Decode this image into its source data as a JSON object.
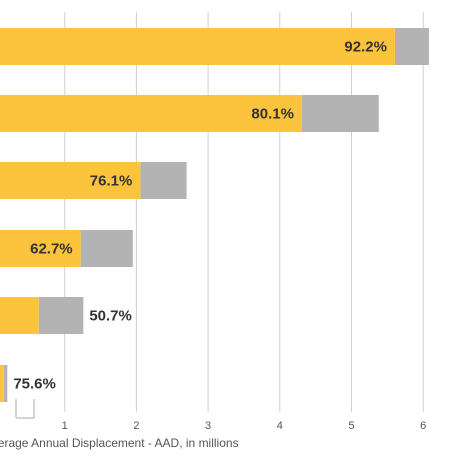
{
  "chart_data": {
    "type": "bar",
    "orientation": "horizontal",
    "stacked": true,
    "xlabel": "Average Annual Displacement - AAD, in millions",
    "x_ticks": [
      "1",
      "2",
      "3",
      "4",
      "5",
      "6"
    ],
    "xlim": [
      0.0,
      6.0
    ],
    "grid": true,
    "colors": {
      "share": "#fcc43c",
      "remainder": "#b3b3b3",
      "grid": "#d0d0d0"
    },
    "bars": [
      {
        "total": 6.08,
        "share_label": "92.2%",
        "share_fraction": 0.922
      },
      {
        "total": 5.38,
        "share_label": "80.1%",
        "share_fraction": 0.801
      },
      {
        "total": 2.7,
        "share_label": "76.1%",
        "share_fraction": 0.761
      },
      {
        "total": 1.95,
        "share_label": "62.7%",
        "share_fraction": 0.627
      },
      {
        "total": 1.26,
        "share_label": "50.7%",
        "share_fraction": 0.507
      },
      {
        "total": 0.2,
        "share_label": "75.6%",
        "share_fraction": 0.756
      }
    ]
  }
}
